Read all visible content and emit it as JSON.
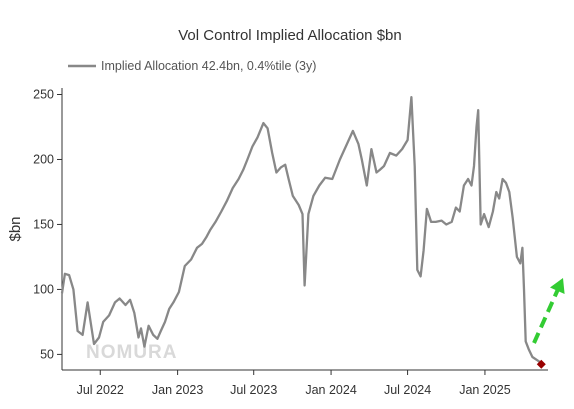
{
  "chart_data": {
    "type": "line",
    "title": "Vol Control Implied Allocation $bn",
    "ylabel": "$bn",
    "xlabel": "",
    "ylim": [
      38,
      255
    ],
    "y_ticks": [
      50,
      100,
      150,
      200,
      250
    ],
    "x_range": [
      "2022-04-01",
      "2025-05-31"
    ],
    "x_ticks": [
      {
        "date": "2022-07-01",
        "label": "Jul 2022"
      },
      {
        "date": "2023-01-01",
        "label": "Jan 2023"
      },
      {
        "date": "2023-07-01",
        "label": "Jul 2023"
      },
      {
        "date": "2024-01-01",
        "label": "Jan 2024"
      },
      {
        "date": "2024-07-01",
        "label": "Jul 2024"
      },
      {
        "date": "2025-01-01",
        "label": "Jan 2025"
      }
    ],
    "grid": false,
    "legend_position": "top-left",
    "series": [
      {
        "name": "Implied Allocation 42.4bn, 0.4%tile (3y)",
        "color": "#888888",
        "points": [
          [
            "2022-04-01",
            97
          ],
          [
            "2022-04-08",
            112
          ],
          [
            "2022-04-18",
            111
          ],
          [
            "2022-04-28",
            100
          ],
          [
            "2022-05-08",
            68
          ],
          [
            "2022-05-20",
            65
          ],
          [
            "2022-06-01",
            90
          ],
          [
            "2022-06-08",
            75
          ],
          [
            "2022-06-16",
            58
          ],
          [
            "2022-06-28",
            63
          ],
          [
            "2022-07-08",
            75
          ],
          [
            "2022-07-22",
            80
          ],
          [
            "2022-08-05",
            90
          ],
          [
            "2022-08-16",
            93
          ],
          [
            "2022-08-30",
            88
          ],
          [
            "2022-09-10",
            92
          ],
          [
            "2022-09-20",
            82
          ],
          [
            "2022-09-30",
            63
          ],
          [
            "2022-10-06",
            70
          ],
          [
            "2022-10-14",
            56
          ],
          [
            "2022-10-24",
            72
          ],
          [
            "2022-11-04",
            65
          ],
          [
            "2022-11-14",
            62
          ],
          [
            "2022-11-22",
            68
          ],
          [
            "2022-12-02",
            75
          ],
          [
            "2022-12-12",
            85
          ],
          [
            "2022-12-22",
            90
          ],
          [
            "2023-01-04",
            98
          ],
          [
            "2023-01-18",
            118
          ],
          [
            "2023-02-02",
            123
          ],
          [
            "2023-02-16",
            132
          ],
          [
            "2023-02-28",
            135
          ],
          [
            "2023-03-10",
            140
          ],
          [
            "2023-03-20",
            146
          ],
          [
            "2023-04-01",
            152
          ],
          [
            "2023-04-15",
            160
          ],
          [
            "2023-04-28",
            168
          ],
          [
            "2023-05-12",
            178
          ],
          [
            "2023-05-26",
            185
          ],
          [
            "2023-06-06",
            192
          ],
          [
            "2023-06-16",
            200
          ],
          [
            "2023-06-28",
            210
          ],
          [
            "2023-07-10",
            217
          ],
          [
            "2023-07-24",
            228
          ],
          [
            "2023-08-03",
            224
          ],
          [
            "2023-08-14",
            205
          ],
          [
            "2023-08-24",
            190
          ],
          [
            "2023-09-04",
            194
          ],
          [
            "2023-09-14",
            196
          ],
          [
            "2023-09-22",
            185
          ],
          [
            "2023-10-02",
            172
          ],
          [
            "2023-10-16",
            165
          ],
          [
            "2023-10-25",
            158
          ],
          [
            "2023-10-30",
            103
          ],
          [
            "2023-11-08",
            158
          ],
          [
            "2023-11-20",
            172
          ],
          [
            "2023-12-04",
            180
          ],
          [
            "2023-12-18",
            186
          ],
          [
            "2024-01-04",
            185
          ],
          [
            "2024-01-22",
            200
          ],
          [
            "2024-02-08",
            212
          ],
          [
            "2024-02-22",
            222
          ],
          [
            "2024-03-06",
            212
          ],
          [
            "2024-03-14",
            200
          ],
          [
            "2024-03-26",
            180
          ],
          [
            "2024-04-06",
            208
          ],
          [
            "2024-04-18",
            190
          ],
          [
            "2024-04-26",
            192
          ],
          [
            "2024-05-06",
            195
          ],
          [
            "2024-05-20",
            205
          ],
          [
            "2024-06-04",
            203
          ],
          [
            "2024-06-18",
            208
          ],
          [
            "2024-07-01",
            215
          ],
          [
            "2024-07-10",
            248
          ],
          [
            "2024-07-18",
            195
          ],
          [
            "2024-07-24",
            115
          ],
          [
            "2024-08-01",
            110
          ],
          [
            "2024-08-08",
            130
          ],
          [
            "2024-08-16",
            162
          ],
          [
            "2024-08-26",
            152
          ],
          [
            "2024-09-06",
            152
          ],
          [
            "2024-09-20",
            153
          ],
          [
            "2024-10-01",
            150
          ],
          [
            "2024-10-14",
            152
          ],
          [
            "2024-10-24",
            163
          ],
          [
            "2024-11-02",
            160
          ],
          [
            "2024-11-12",
            180
          ],
          [
            "2024-11-22",
            185
          ],
          [
            "2024-11-30",
            180
          ],
          [
            "2024-12-06",
            195
          ],
          [
            "2024-12-12",
            225
          ],
          [
            "2024-12-16",
            238
          ],
          [
            "2024-12-22",
            150
          ],
          [
            "2024-12-30",
            158
          ],
          [
            "2025-01-10",
            148
          ],
          [
            "2025-01-20",
            160
          ],
          [
            "2025-01-28",
            175
          ],
          [
            "2025-02-04",
            170
          ],
          [
            "2025-02-12",
            185
          ],
          [
            "2025-02-20",
            182
          ],
          [
            "2025-02-28",
            175
          ],
          [
            "2025-03-08",
            155
          ],
          [
            "2025-03-18",
            125
          ],
          [
            "2025-03-26",
            120
          ],
          [
            "2025-03-31",
            132
          ],
          [
            "2025-04-04",
            100
          ],
          [
            "2025-04-08",
            60
          ],
          [
            "2025-04-15",
            54
          ],
          [
            "2025-04-24",
            48
          ],
          [
            "2025-05-08",
            45
          ],
          [
            "2025-05-15",
            43
          ]
        ]
      }
    ],
    "annotations": [
      {
        "type": "marker",
        "date": "2025-05-15",
        "value": 42.4,
        "shape": "diamond",
        "color": "#990000"
      },
      {
        "type": "arrow",
        "style": "dashed",
        "color": "#33cc33",
        "direction": "up-right"
      }
    ]
  },
  "watermark": "NOMURA"
}
